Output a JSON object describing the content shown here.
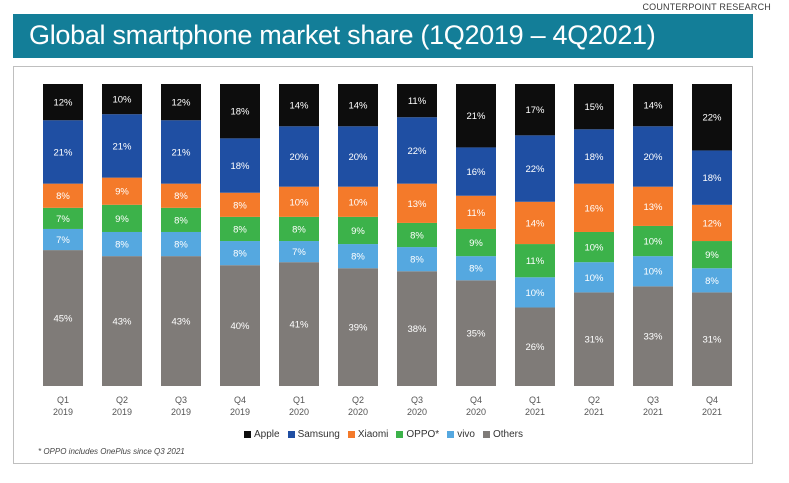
{
  "source_label": "COUNTERPOINT RESEARCH",
  "title": "Global smartphone market share (1Q2019 – 4Q2021)",
  "footnote": "* OPPO includes OnePlus since Q3 2021",
  "chart_data": {
    "type": "bar",
    "stacked": true,
    "title": "Global smartphone market share (1Q2019 – 4Q2021)",
    "categories": [
      [
        "Q1",
        "2019"
      ],
      [
        "Q2",
        "2019"
      ],
      [
        "Q3",
        "2019"
      ],
      [
        "Q4",
        "2019"
      ],
      [
        "Q1",
        "2020"
      ],
      [
        "Q2",
        "2020"
      ],
      [
        "Q3",
        "2020"
      ],
      [
        "Q4",
        "2020"
      ],
      [
        "Q1",
        "2021"
      ],
      [
        "Q2",
        "2021"
      ],
      [
        "Q3",
        "2021"
      ],
      [
        "Q4",
        "2021"
      ]
    ],
    "series": [
      {
        "name": "Others",
        "color": "#7f7b78",
        "values": [
          45,
          43,
          43,
          40,
          41,
          39,
          38,
          35,
          26,
          31,
          33,
          31
        ]
      },
      {
        "name": "vivo",
        "color": "#55a8e0",
        "values": [
          7,
          8,
          8,
          8,
          7,
          8,
          8,
          8,
          10,
          10,
          10,
          8
        ]
      },
      {
        "name": "OPPO*",
        "color": "#3cb24a",
        "values": [
          7,
          9,
          8,
          8,
          8,
          9,
          8,
          9,
          11,
          10,
          10,
          9
        ]
      },
      {
        "name": "Xiaomi",
        "color": "#f47a2a",
        "values": [
          8,
          9,
          8,
          8,
          10,
          10,
          13,
          11,
          14,
          16,
          13,
          12
        ]
      },
      {
        "name": "Samsung",
        "color": "#1f4fa3",
        "values": [
          21,
          21,
          21,
          18,
          20,
          20,
          22,
          16,
          22,
          18,
          20,
          18
        ]
      },
      {
        "name": "Apple",
        "color": "#0d0d0d",
        "values": [
          12,
          10,
          12,
          18,
          14,
          14,
          11,
          21,
          17,
          15,
          14,
          22
        ]
      }
    ],
    "legend_order": [
      "Apple",
      "Samsung",
      "Xiaomi",
      "OPPO*",
      "vivo",
      "Others"
    ],
    "value_suffix": "%",
    "ylim": [
      0,
      100
    ],
    "xlabel": "",
    "ylabel": "",
    "legend_position": "bottom"
  }
}
